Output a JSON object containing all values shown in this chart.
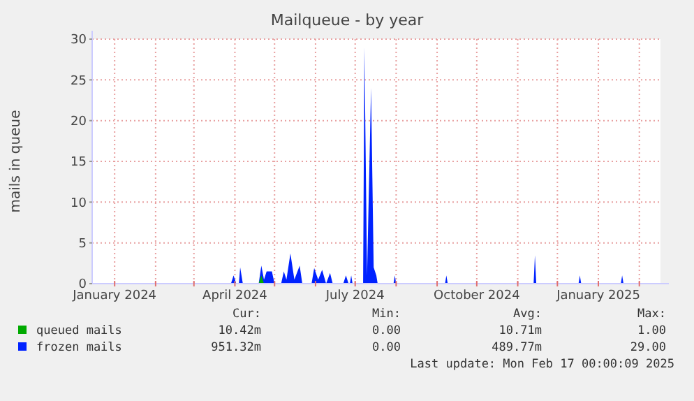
{
  "chart_data": {
    "type": "area",
    "title": "Mailqueue - by year",
    "ylabel": "mails in queue",
    "x": [
      "2023-12-15",
      "2024-03-29",
      "2024-03-31",
      "2024-04-02",
      "2024-04-04",
      "2024-04-05",
      "2024-04-07",
      "2024-04-19",
      "2024-04-21",
      "2024-04-23",
      "2024-04-25",
      "2024-04-29",
      "2024-05-01",
      "2024-05-06",
      "2024-05-08",
      "2024-05-10",
      "2024-05-13",
      "2024-05-16",
      "2024-05-20",
      "2024-05-22",
      "2024-05-29",
      "2024-05-31",
      "2024-06-03",
      "2024-06-06",
      "2024-06-09",
      "2024-06-12",
      "2024-06-14",
      "2024-06-22",
      "2024-06-24",
      "2024-06-26",
      "2024-06-27",
      "2024-06-28",
      "2024-06-29",
      "2024-07-07",
      "2024-07-08",
      "2024-07-10",
      "2024-07-13",
      "2024-07-15",
      "2024-07-17",
      "2024-07-18",
      "2024-07-30",
      "2024-07-31",
      "2024-08-01",
      "2024-09-07",
      "2024-09-08",
      "2024-09-09",
      "2024-11-13",
      "2024-11-14",
      "2024-11-15",
      "2024-12-17",
      "2024-12-18",
      "2024-12-19",
      "2025-01-18",
      "2025-01-19",
      "2025-01-20",
      "2025-02-17"
    ],
    "series": [
      {
        "name": "frozen mails",
        "color": "#0022ff",
        "values": [
          0,
          0,
          1,
          0,
          0,
          2,
          0,
          0,
          2.2,
          0.5,
          1.5,
          1.5,
          0,
          0,
          1.5,
          0.5,
          3.7,
          0.5,
          2.2,
          0,
          0,
          1.9,
          0.5,
          1.7,
          0,
          1.3,
          0,
          0,
          1,
          0,
          0,
          1,
          0,
          0,
          29,
          1,
          24,
          2,
          1,
          0,
          0,
          1,
          0,
          0,
          1,
          0,
          0,
          3.5,
          0,
          0,
          1,
          0,
          0,
          1,
          0,
          0
        ]
      },
      {
        "name": "queued mails",
        "color": "#00aa00",
        "values": [
          0,
          0,
          0,
          0,
          0,
          0,
          0,
          0,
          1,
          0,
          0,
          0,
          0,
          0,
          0,
          0,
          0,
          0,
          0,
          0,
          0,
          0,
          0,
          0,
          0,
          0,
          0,
          0,
          0,
          0,
          0,
          0,
          0,
          0,
          0,
          0,
          0,
          0,
          0,
          0,
          0,
          0,
          0,
          0,
          0,
          0,
          0,
          0,
          0,
          0,
          0,
          0,
          0,
          0,
          0,
          0
        ]
      }
    ],
    "xlim": [
      "2023-12-15",
      "2025-02-17"
    ],
    "xticks": [
      {
        "value": "2024-01-01",
        "label": "January 2024"
      },
      {
        "value": "2024-02-01",
        "label": null
      },
      {
        "value": "2024-03-01",
        "label": null
      },
      {
        "value": "2024-04-01",
        "label": "April 2024"
      },
      {
        "value": "2024-05-01",
        "label": null
      },
      {
        "value": "2024-06-01",
        "label": null
      },
      {
        "value": "2024-07-01",
        "label": "July 2024"
      },
      {
        "value": "2024-08-01",
        "label": null
      },
      {
        "value": "2024-09-01",
        "label": null
      },
      {
        "value": "2024-10-01",
        "label": "October 2024"
      },
      {
        "value": "2024-11-01",
        "label": null
      },
      {
        "value": "2024-12-01",
        "label": null
      },
      {
        "value": "2025-01-01",
        "label": "January 2025"
      },
      {
        "value": "2025-02-01",
        "label": null
      }
    ],
    "ylim": [
      0,
      30
    ],
    "yticks": [
      0,
      5,
      10,
      15,
      20,
      25,
      30
    ],
    "grid": true,
    "legend": "bottom left",
    "annotations": [
      "Cur:",
      "Min:",
      "Avg:",
      "Max:",
      "10.42m",
      "0.00",
      "10.71m",
      "1.00",
      "951.32m",
      "0.00",
      "489.77m",
      "29.00",
      "Last update: Mon Feb 17 00:00:09 2025"
    ]
  }
}
